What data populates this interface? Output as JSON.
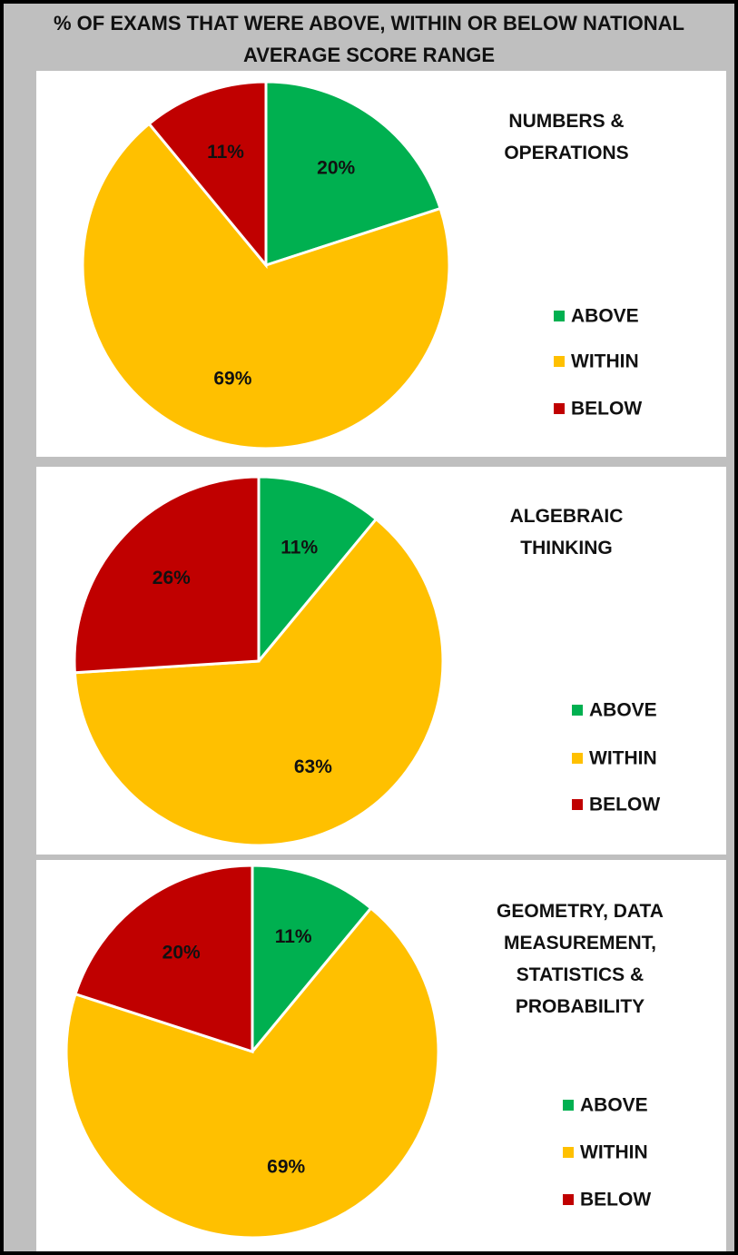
{
  "title": "% OF EXAMS THAT WERE ABOVE, WITHIN OR BELOW NATIONAL AVERAGE SCORE RANGE",
  "chart_data": [
    {
      "type": "pie",
      "title": "NUMBERS & OPERATIONS",
      "categories": [
        "ABOVE",
        "WITHIN",
        "BELOW"
      ],
      "values": [
        20,
        69,
        11
      ],
      "value_labels": [
        "20%",
        "69%",
        "11%"
      ],
      "colors": [
        "#00b050",
        "#ffc000",
        "#c00000"
      ]
    },
    {
      "type": "pie",
      "title": "ALGEBRAIC THINKING",
      "categories": [
        "ABOVE",
        "WITHIN",
        "BELOW"
      ],
      "values": [
        11,
        63,
        26
      ],
      "value_labels": [
        "11%",
        "63%",
        "26%"
      ],
      "colors": [
        "#00b050",
        "#ffc000",
        "#c00000"
      ]
    },
    {
      "type": "pie",
      "title": "GEOMETRY, DATA MEASUREMENT, STATISTICS & PROBABILITY",
      "categories": [
        "ABOVE",
        "WITHIN",
        "BELOW"
      ],
      "values": [
        11,
        69,
        20
      ],
      "value_labels": [
        "11%",
        "69%",
        "20%"
      ],
      "colors": [
        "#00b050",
        "#ffc000",
        "#c00000"
      ]
    }
  ]
}
